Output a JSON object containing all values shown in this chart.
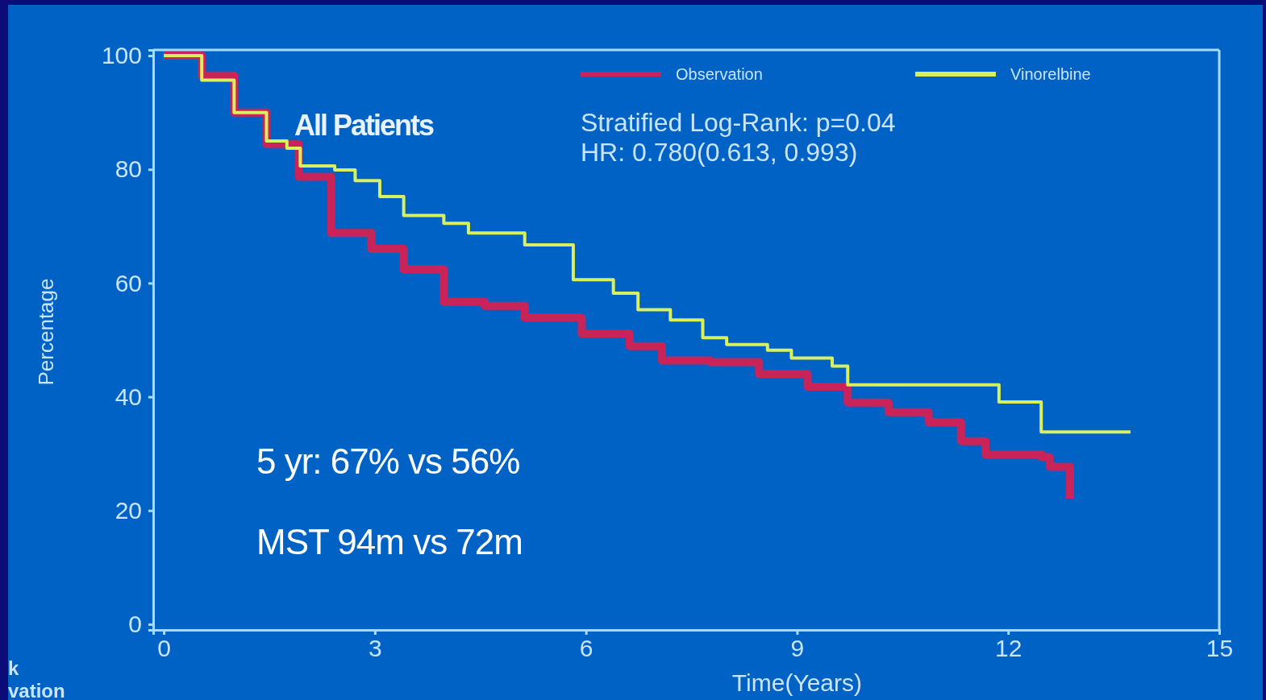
{
  "chart_data": {
    "type": "step",
    "xlabel": "Time(Years)",
    "ylabel": "Percentage",
    "xlim": [
      -0.15,
      15
    ],
    "xticks": [
      0,
      3,
      6,
      9,
      12,
      15
    ],
    "ylim": [
      -1,
      101
    ],
    "yticks": [
      0,
      20,
      40,
      60,
      80,
      100
    ],
    "legend": "top right",
    "grid": false,
    "series": [
      {
        "name": "Observation",
        "color": "#c8245a",
        "x": [
          0,
          0.54,
          1.0,
          1.46,
          1.92,
          2.38,
          2.95,
          3.41,
          3.98,
          4.56,
          5.13,
          5.94,
          6.62,
          7.08,
          7.77,
          8.46,
          9.15,
          9.72,
          10.3,
          10.87,
          11.33,
          11.68,
          12.48,
          12.59,
          12.87,
          12.88
        ],
        "values": [
          100,
          96.5,
          90,
          84.4,
          78.7,
          68.8,
          66,
          62.4,
          56.7,
          56,
          53.9,
          51.1,
          48.9,
          46.4,
          46.1,
          44,
          41.8,
          39,
          37.3,
          35.5,
          32.2,
          29.8,
          29.4,
          27.7,
          27.7,
          22.1
        ]
      },
      {
        "name": "Vinorelbine",
        "color": "#d8f060",
        "x": [
          0,
          0.54,
          1.0,
          1.46,
          1.75,
          1.94,
          2.43,
          2.72,
          3.07,
          3.41,
          3.98,
          4.33,
          5.13,
          5.82,
          6.39,
          6.74,
          7.2,
          7.66,
          8.0,
          8.58,
          8.92,
          9.5,
          9.72,
          11.87,
          12.47,
          13.74
        ],
        "values": [
          100,
          95.7,
          90,
          85,
          83.7,
          80.6,
          79.9,
          78,
          75.2,
          71.9,
          70.5,
          68.8,
          66.7,
          60.6,
          58.2,
          55.3,
          53.5,
          50.4,
          49.2,
          48.2,
          46.8,
          45.4,
          42.1,
          39.1,
          33.8,
          33.8
        ]
      }
    ],
    "annotations": [
      "All Patients",
      "Stratified Log-Rank: p=0.04",
      "HR: 0.780(0.613, 0.993)",
      "5 yr: 67% vs 56%",
      "MST 94m vs 72m",
      "k",
      "vation"
    ]
  }
}
